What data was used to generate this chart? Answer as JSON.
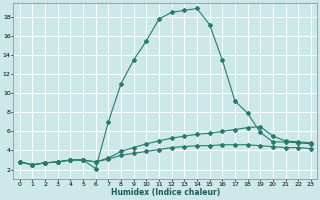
{
  "xlabel": "Humidex (Indice chaleur)",
  "background_color": "#cce8e8",
  "grid_color": "#ffffff",
  "line_color": "#2a7a6a",
  "xlim": [
    -0.5,
    23.5
  ],
  "ylim": [
    1.0,
    19.5
  ],
  "xticks": [
    0,
    1,
    2,
    3,
    4,
    5,
    6,
    7,
    8,
    9,
    10,
    11,
    12,
    13,
    14,
    15,
    16,
    17,
    18,
    19,
    20,
    21,
    22,
    23
  ],
  "yticks": [
    2,
    4,
    6,
    8,
    10,
    12,
    14,
    16,
    18
  ],
  "series1_x": [
    0,
    1,
    2,
    3,
    4,
    5,
    6,
    7,
    8,
    9,
    10,
    11,
    12,
    13,
    14,
    15,
    16,
    17,
    18,
    19,
    20,
    21,
    22,
    23
  ],
  "series1_y": [
    2.8,
    2.5,
    2.7,
    2.8,
    3.0,
    3.0,
    2.1,
    7.0,
    11.0,
    13.5,
    15.5,
    17.8,
    18.5,
    18.7,
    18.9,
    17.2,
    13.5,
    9.2,
    7.9,
    5.9,
    4.9,
    4.9,
    4.8,
    4.7
  ],
  "series2_x": [
    0,
    1,
    2,
    3,
    4,
    5,
    6,
    7,
    8,
    9,
    10,
    11,
    12,
    13,
    14,
    15,
    16,
    17,
    18,
    19,
    20,
    21,
    22,
    23
  ],
  "series2_y": [
    2.8,
    2.5,
    2.7,
    2.8,
    3.0,
    3.0,
    2.8,
    3.2,
    3.9,
    4.3,
    4.7,
    5.0,
    5.3,
    5.5,
    5.7,
    5.8,
    6.0,
    6.2,
    6.4,
    6.5,
    5.5,
    5.0,
    4.9,
    4.8
  ],
  "series3_x": [
    0,
    1,
    2,
    3,
    4,
    5,
    6,
    7,
    8,
    9,
    10,
    11,
    12,
    13,
    14,
    15,
    16,
    17,
    18,
    19,
    20,
    21,
    22,
    23
  ],
  "series3_y": [
    2.8,
    2.5,
    2.7,
    2.8,
    3.0,
    3.0,
    2.8,
    3.1,
    3.5,
    3.7,
    3.9,
    4.1,
    4.3,
    4.4,
    4.5,
    4.5,
    4.6,
    4.6,
    4.6,
    4.5,
    4.4,
    4.3,
    4.3,
    4.2
  ]
}
